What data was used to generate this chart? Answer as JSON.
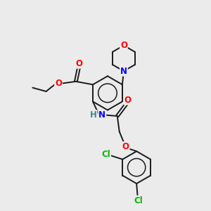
{
  "background_color": "#ebebeb",
  "bond_color": "#1a1a1a",
  "atom_colors": {
    "O": "#ff0000",
    "N": "#0000ff",
    "Cl": "#00bb00",
    "C": "#1a1a1a",
    "H": "#3a8a8a"
  },
  "figsize": [
    3.0,
    3.0
  ],
  "dpi": 100
}
